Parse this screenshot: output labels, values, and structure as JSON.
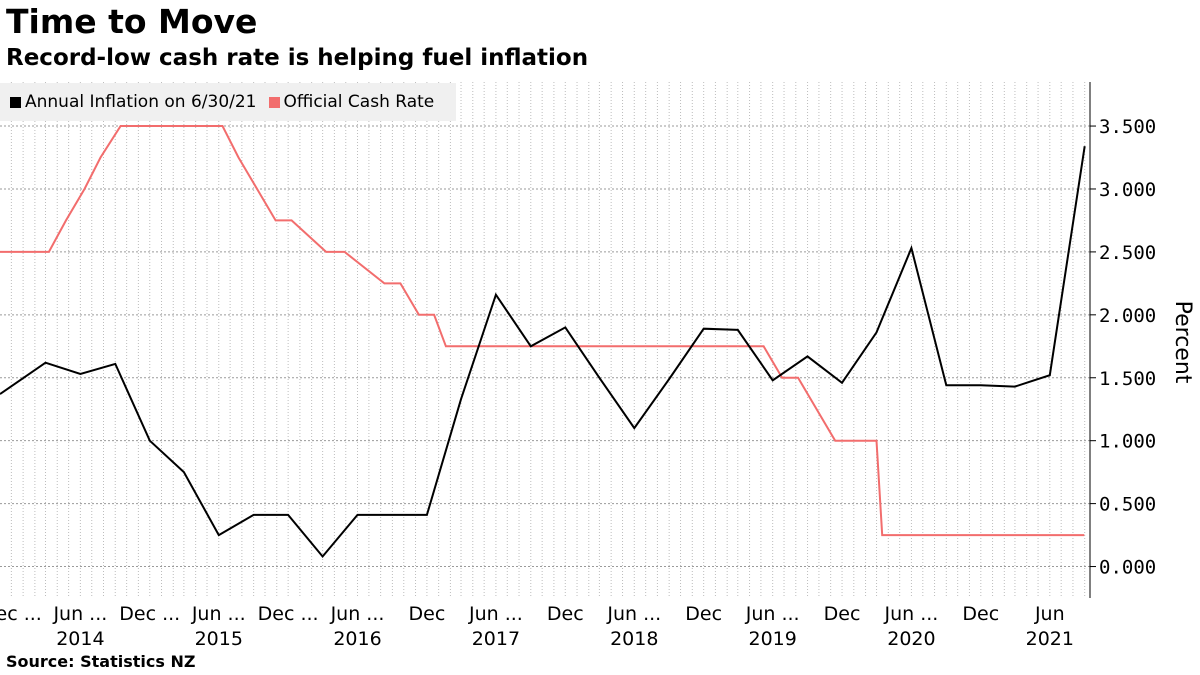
{
  "title": "Time to Move",
  "subtitle": "Record-low cash rate is helping fuel inflation",
  "source": "Source:  Statistics NZ",
  "colors": {
    "inflation": "#000000",
    "ocr": "#f26d6d",
    "grid": "#bdbdbd",
    "legend_bg": "#f0f0f0"
  },
  "chart_data": {
    "type": "line",
    "ylabel": "Percent",
    "ylim": [
      -0.25,
      3.85
    ],
    "yticks": [
      "0.000",
      "0.500",
      "1.000",
      "1.500",
      "2.000",
      "2.500",
      "3.000",
      "3.500"
    ],
    "xlim": [
      "2013-11-01",
      "2021-09-15"
    ],
    "x_tick_labels": [
      {
        "month": "Dec ...",
        "year": "",
        "date": "2013-12-01"
      },
      {
        "month": "Jun ...",
        "year": "2014",
        "date": "2014-06-01"
      },
      {
        "month": "Dec ...",
        "year": "",
        "date": "2014-12-01"
      },
      {
        "month": "Jun ...",
        "year": "2015",
        "date": "2015-06-01"
      },
      {
        "month": "Dec ...",
        "year": "",
        "date": "2015-12-01"
      },
      {
        "month": "Jun ...",
        "year": "2016",
        "date": "2016-06-01"
      },
      {
        "month": "Dec",
        "year": "",
        "date": "2016-12-01"
      },
      {
        "month": "Jun ...",
        "year": "2017",
        "date": "2017-06-01"
      },
      {
        "month": "Dec",
        "year": "",
        "date": "2017-12-01"
      },
      {
        "month": "Jun ...",
        "year": "2018",
        "date": "2018-06-01"
      },
      {
        "month": "Dec",
        "year": "",
        "date": "2018-12-01"
      },
      {
        "month": "Jun ...",
        "year": "2019",
        "date": "2019-06-01"
      },
      {
        "month": "Dec",
        "year": "",
        "date": "2019-12-01"
      },
      {
        "month": "Jun ...",
        "year": "2020",
        "date": "2020-06-01"
      },
      {
        "month": "Dec",
        "year": "",
        "date": "2020-12-01"
      },
      {
        "month": "Jun",
        "year": "2021",
        "date": "2021-06-01"
      }
    ],
    "legend": {
      "position": "top-left"
    },
    "grid": true,
    "series": [
      {
        "name": "Annual Inflation on 6/30/21",
        "color": "#000000",
        "points": [
          [
            "2013-11-01",
            1.37
          ],
          [
            "2014-03-01",
            1.62
          ],
          [
            "2014-06-01",
            1.53
          ],
          [
            "2014-09-01",
            1.61
          ],
          [
            "2014-12-01",
            1.0
          ],
          [
            "2015-03-01",
            0.75
          ],
          [
            "2015-06-01",
            0.25
          ],
          [
            "2015-09-01",
            0.41
          ],
          [
            "2015-12-01",
            0.41
          ],
          [
            "2016-03-01",
            0.08
          ],
          [
            "2016-06-01",
            0.41
          ],
          [
            "2016-09-01",
            0.41
          ],
          [
            "2016-12-01",
            0.41
          ],
          [
            "2017-03-01",
            1.33
          ],
          [
            "2017-06-01",
            2.16
          ],
          [
            "2017-09-01",
            1.75
          ],
          [
            "2017-12-01",
            1.9
          ],
          [
            "2018-03-01",
            1.5
          ],
          [
            "2018-06-01",
            1.1
          ],
          [
            "2018-09-01",
            1.49
          ],
          [
            "2018-12-01",
            1.89
          ],
          [
            "2019-03-01",
            1.88
          ],
          [
            "2019-06-01",
            1.48
          ],
          [
            "2019-09-01",
            1.67
          ],
          [
            "2019-12-01",
            1.46
          ],
          [
            "2020-03-01",
            1.86
          ],
          [
            "2020-06-01",
            2.53
          ],
          [
            "2020-09-01",
            1.44
          ],
          [
            "2020-12-01",
            1.44
          ],
          [
            "2021-03-01",
            1.43
          ],
          [
            "2021-06-01",
            1.52
          ],
          [
            "2021-09-01",
            3.34
          ]
        ]
      },
      {
        "name": "Official Cash Rate",
        "color": "#f26d6d",
        "points": [
          [
            "2013-11-01",
            2.5
          ],
          [
            "2014-03-10",
            2.5
          ],
          [
            "2014-04-24",
            2.75
          ],
          [
            "2014-06-12",
            3.0
          ],
          [
            "2014-07-24",
            3.25
          ],
          [
            "2014-09-15",
            3.5
          ],
          [
            "2015-06-11",
            3.5
          ],
          [
            "2015-07-23",
            3.25
          ],
          [
            "2015-09-10",
            3.0
          ],
          [
            "2015-10-29",
            2.75
          ],
          [
            "2015-12-10",
            2.75
          ],
          [
            "2016-03-10",
            2.5
          ],
          [
            "2016-04-28",
            2.5
          ],
          [
            "2016-08-11",
            2.25
          ],
          [
            "2016-09-22",
            2.25
          ],
          [
            "2016-11-10",
            2.0
          ],
          [
            "2016-12-20",
            2.0
          ],
          [
            "2017-01-20",
            1.75
          ],
          [
            "2019-05-08",
            1.75
          ],
          [
            "2019-06-26",
            1.5
          ],
          [
            "2019-08-07",
            1.5
          ],
          [
            "2019-11-13",
            1.0
          ],
          [
            "2020-03-01",
            1.0
          ],
          [
            "2020-03-16",
            0.25
          ],
          [
            "2021-08-31",
            0.25
          ]
        ]
      }
    ]
  }
}
